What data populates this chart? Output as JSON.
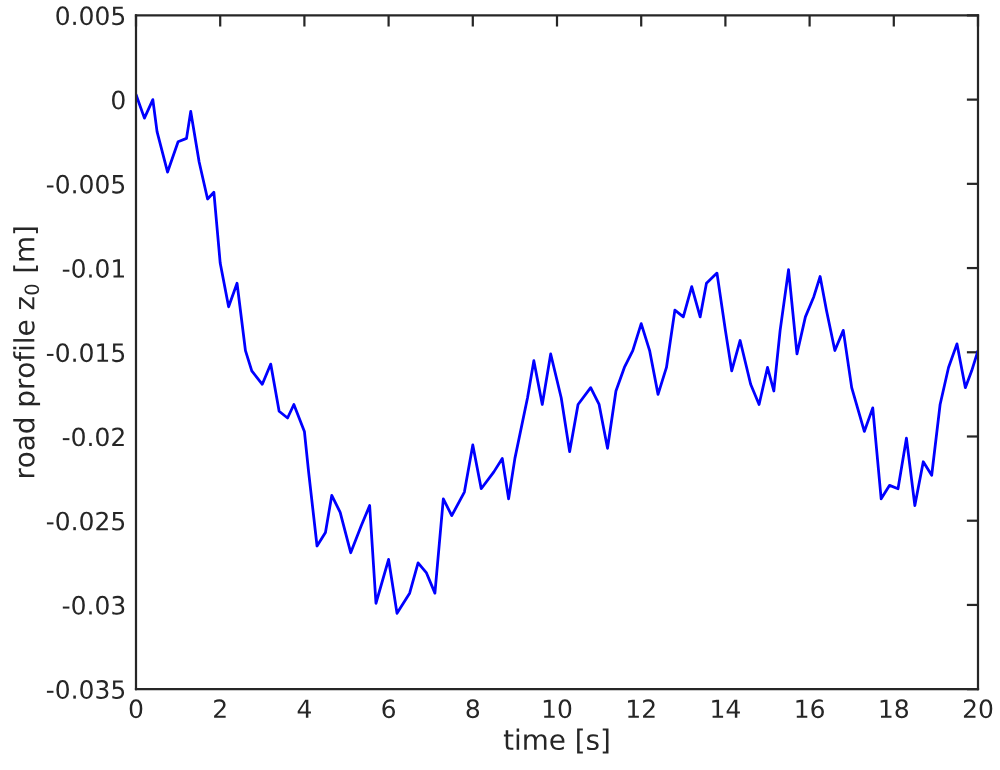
{
  "chart_data": {
    "type": "line",
    "xlabel": "time [s]",
    "ylabel": "road profile z$_{0}$ [m]",
    "xlim": [
      0,
      20
    ],
    "ylim": [
      -0.035,
      0.005
    ],
    "xticks": [
      0,
      2,
      4,
      6,
      8,
      10,
      12,
      14,
      16,
      18,
      20
    ],
    "yticks": [
      -0.035,
      -0.03,
      -0.025,
      -0.02,
      -0.015,
      -0.01,
      -0.005,
      0,
      0.005
    ],
    "grid": false,
    "marker": "none",
    "line_style": "solid",
    "series": [
      {
        "color": "#0000ff",
        "x": [
          0,
          0.2,
          0.4,
          0.5,
          0.75,
          1.0,
          1.2,
          1.3,
          1.5,
          1.7,
          1.85,
          2.0,
          2.2,
          2.4,
          2.6,
          2.75,
          3.0,
          3.2,
          3.4,
          3.6,
          3.75,
          4.0,
          4.1,
          4.3,
          4.5,
          4.65,
          4.85,
          5.1,
          5.35,
          5.55,
          5.7,
          6.0,
          6.2,
          6.5,
          6.7,
          6.9,
          7.1,
          7.3,
          7.5,
          7.8,
          8.0,
          8.2,
          8.5,
          8.7,
          8.85,
          9.0,
          9.3,
          9.45,
          9.65,
          9.85,
          10.1,
          10.3,
          10.5,
          10.8,
          11.0,
          11.2,
          11.4,
          11.6,
          11.8,
          12.0,
          12.2,
          12.4,
          12.6,
          12.8,
          13.0,
          13.2,
          13.4,
          13.55,
          13.8,
          14.0,
          14.15,
          14.35,
          14.6,
          14.8,
          15.0,
          15.15,
          15.3,
          15.5,
          15.7,
          15.9,
          16.1,
          16.25,
          16.4,
          16.6,
          16.8,
          17.0,
          17.3,
          17.5,
          17.7,
          17.9,
          18.1,
          18.3,
          18.5,
          18.7,
          18.9,
          19.1,
          19.3,
          19.5,
          19.7,
          19.85,
          20.0
        ],
        "values": [
          0.0003,
          -0.0011,
          0.0,
          -0.0019,
          -0.0043,
          -0.0025,
          -0.0023,
          -0.0007,
          -0.0037,
          -0.0059,
          -0.0055,
          -0.0097,
          -0.0123,
          -0.0109,
          -0.0149,
          -0.0161,
          -0.0169,
          -0.0157,
          -0.0185,
          -0.0189,
          -0.0181,
          -0.0197,
          -0.0221,
          -0.0265,
          -0.0257,
          -0.0235,
          -0.0245,
          -0.0269,
          -0.0253,
          -0.0241,
          -0.0299,
          -0.0273,
          -0.0305,
          -0.0293,
          -0.0275,
          -0.0281,
          -0.0293,
          -0.0237,
          -0.0247,
          -0.0233,
          -0.0205,
          -0.0231,
          -0.0221,
          -0.0213,
          -0.0237,
          -0.0213,
          -0.0177,
          -0.0155,
          -0.0181,
          -0.0151,
          -0.0177,
          -0.0209,
          -0.0181,
          -0.0171,
          -0.0181,
          -0.0207,
          -0.0173,
          -0.0159,
          -0.0149,
          -0.0133,
          -0.0149,
          -0.0175,
          -0.0159,
          -0.0125,
          -0.0129,
          -0.0111,
          -0.0129,
          -0.0109,
          -0.0103,
          -0.0137,
          -0.0161,
          -0.0143,
          -0.0169,
          -0.0181,
          -0.0159,
          -0.0173,
          -0.0137,
          -0.0101,
          -0.0151,
          -0.0129,
          -0.0117,
          -0.0105,
          -0.0125,
          -0.0149,
          -0.0137,
          -0.0171,
          -0.0197,
          -0.0183,
          -0.0237,
          -0.0229,
          -0.0231,
          -0.0201,
          -0.0241,
          -0.0215,
          -0.0223,
          -0.0181,
          -0.0159,
          -0.0145,
          -0.0171,
          -0.0161,
          -0.0149
        ]
      }
    ]
  }
}
